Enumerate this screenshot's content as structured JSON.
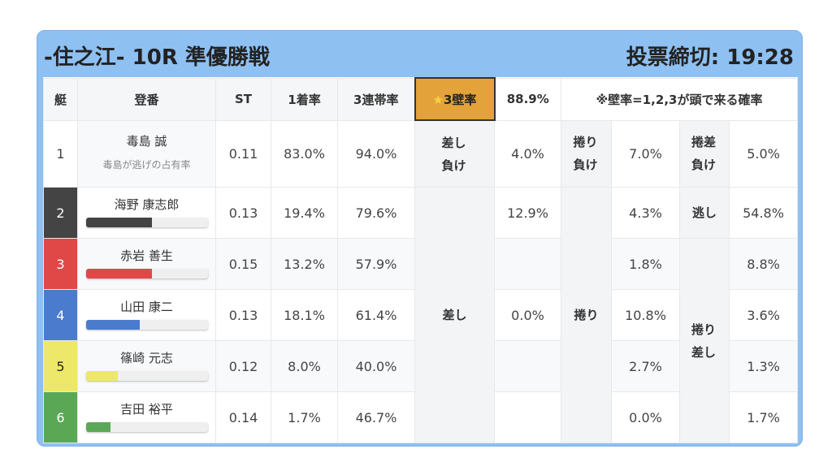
{
  "header": {
    "title": "-住之江- 10R 準優勝戦",
    "deadline": "投票締切: 19:28"
  },
  "columns": {
    "boat": "艇",
    "reg": "登番",
    "st": "ST",
    "win": "1着率",
    "top3": "3連帯率",
    "wall_star": "★",
    "wall_label": "3壁率",
    "wall_value": "88.9%",
    "note": "※壁率=1,2,3が頭で来る確率"
  },
  "colors": {
    "header_bg": "#8ec0f2",
    "wall_highlight": "#e3a23a",
    "boat1": "#ffffff",
    "boat2": "#444444",
    "boat3": "#e04848",
    "boat4": "#4a7bcc",
    "boat5": "#eee86a",
    "boat6": "#5aa856"
  },
  "row1": {
    "boat": "1",
    "name": "毒島 誠",
    "sub": "毒島が逃げの占有率",
    "st": "0.11",
    "win": "83.0%",
    "top3": "94.0%",
    "sashi_make_label": "差し負け",
    "sashi_make": "4.0%",
    "makuri_make_label": "捲り負け",
    "makuri_make": "7.0%",
    "makurizashi_make_label": "捲差負け",
    "makurizashi_make": "5.0%"
  },
  "labels": {
    "sashi": "差し",
    "makuri": "捲り",
    "nige": "逃し",
    "makurizashi": "捲り差し"
  },
  "racers": [
    {
      "boat": "2",
      "name": "海野 康志郎",
      "st": "0.13",
      "win": "19.4%",
      "top3": "79.6%",
      "sashi": "12.9%",
      "makuri": "4.3%",
      "last": "54.8%",
      "bar": 0.54,
      "color": "#444444",
      "text": "#ffffff"
    },
    {
      "boat": "3",
      "name": "赤岩 善生",
      "st": "0.15",
      "win": "13.2%",
      "top3": "57.9%",
      "sashi": "",
      "makuri": "1.8%",
      "last": "8.8%",
      "bar": 0.54,
      "color": "#e04848",
      "text": "#ffffff"
    },
    {
      "boat": "4",
      "name": "山田 康二",
      "st": "0.13",
      "win": "18.1%",
      "top3": "61.4%",
      "sashi": "0.0%",
      "makuri": "10.8%",
      "last": "3.6%",
      "bar": 0.44,
      "color": "#4a7bcc",
      "text": "#ffffff"
    },
    {
      "boat": "5",
      "name": "篠崎 元志",
      "st": "0.12",
      "win": "8.0%",
      "top3": "40.0%",
      "sashi": "",
      "makuri": "2.7%",
      "last": "1.3%",
      "bar": 0.26,
      "color": "#eee86a",
      "text": "#222222"
    },
    {
      "boat": "6",
      "name": "吉田 裕平",
      "st": "0.14",
      "win": "1.7%",
      "top3": "46.7%",
      "sashi": "",
      "makuri": "0.0%",
      "last": "1.7%",
      "bar": 0.2,
      "color": "#5aa856",
      "text": "#ffffff"
    }
  ]
}
